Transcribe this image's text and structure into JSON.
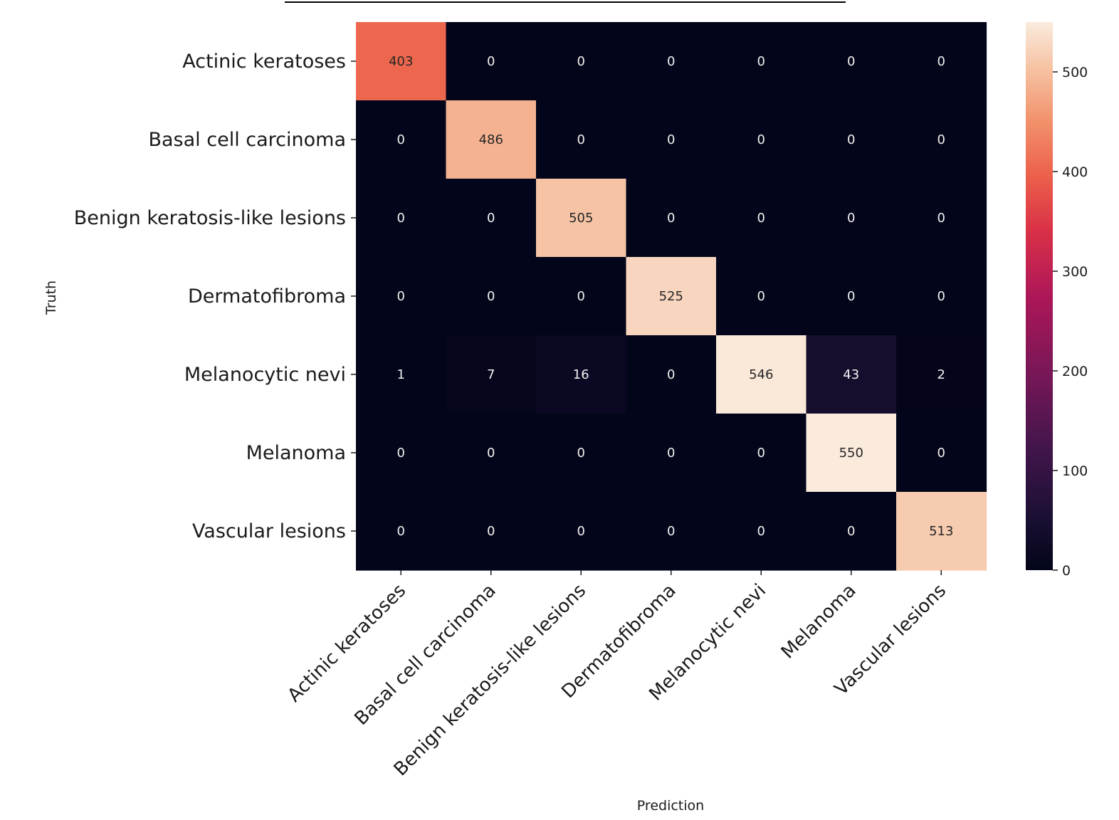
{
  "chart_data": {
    "type": "heatmap",
    "title": "",
    "xlabel": "Prediction",
    "ylabel": "Truth",
    "categories_x": [
      "Actinic keratoses",
      "Basal cell carcinoma",
      "Benign keratosis-like lesions",
      "Dermatofibroma",
      "Melanocytic nevi",
      "Melanoma",
      "Vascular lesions"
    ],
    "categories_y": [
      "Actinic keratoses",
      "Basal cell carcinoma",
      "Benign keratosis-like lesions",
      "Dermatofibroma",
      "Melanocytic nevi",
      "Melanoma",
      "Vascular lesions"
    ],
    "values": [
      [
        403,
        0,
        0,
        0,
        0,
        0,
        0
      ],
      [
        0,
        486,
        0,
        0,
        0,
        0,
        0
      ],
      [
        0,
        0,
        505,
        0,
        0,
        0,
        0
      ],
      [
        0,
        0,
        0,
        525,
        0,
        0,
        0
      ],
      [
        1,
        7,
        16,
        0,
        546,
        43,
        2
      ],
      [
        0,
        0,
        0,
        0,
        0,
        550,
        0
      ],
      [
        0,
        0,
        0,
        0,
        0,
        0,
        513
      ]
    ],
    "colorbar": {
      "min": 0,
      "max": 550,
      "ticks": [
        0,
        100,
        200,
        300,
        400,
        500
      ],
      "colormap": "rocket"
    },
    "grid": false,
    "legend": "colorbar-right"
  }
}
